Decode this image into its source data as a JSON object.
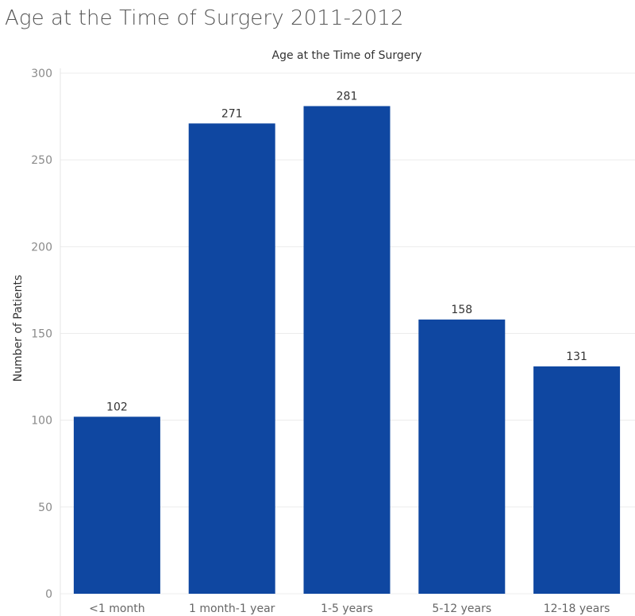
{
  "page": {
    "title": "Age at the Time of Surgery 2011-2012"
  },
  "chart_data": {
    "type": "bar",
    "title": "Age at the Time of Surgery",
    "xlabel": "",
    "ylabel": "Number of Patients",
    "categories": [
      "<1 month",
      "1 month-1 year",
      "1-5 years",
      "5-12 years",
      "12-18 years"
    ],
    "values": [
      102,
      271,
      281,
      158,
      131
    ],
    "data_labels": [
      "102",
      "271",
      "281",
      "158",
      "131"
    ],
    "ylim": [
      0,
      300
    ],
    "yticks": [
      0,
      50,
      100,
      150,
      200,
      250,
      300
    ],
    "ytick_labels": [
      "0",
      "50",
      "100",
      "150",
      "200",
      "250",
      "300"
    ],
    "grid": true,
    "legend": "none",
    "bar_color": "#0f47a1"
  }
}
